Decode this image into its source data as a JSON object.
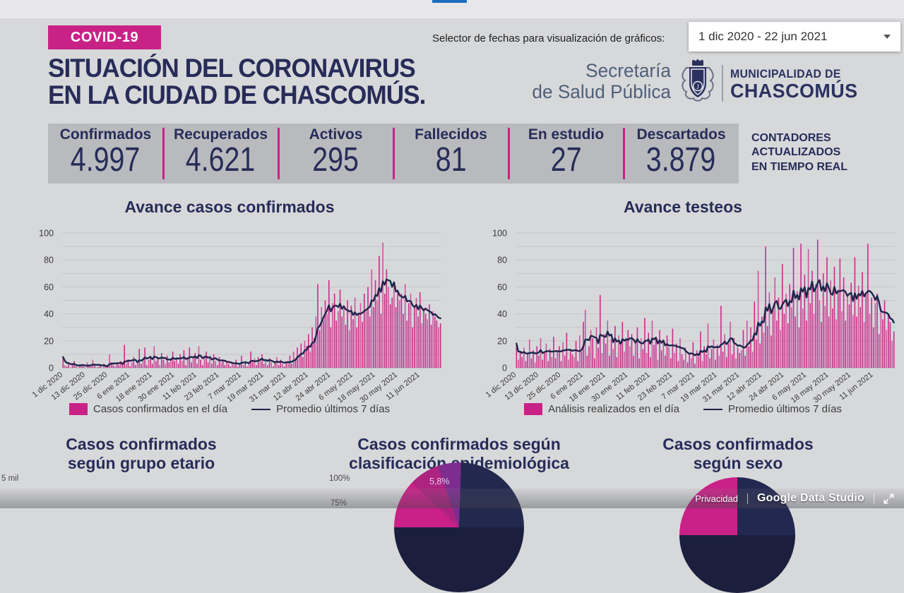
{
  "theme": {
    "magenta": "#c92287",
    "navy": "#272c58",
    "counter_bg": "#b9babd",
    "page_bg": "#d7d8da",
    "line": "#20244a"
  },
  "header": {
    "badge": "COVID-19",
    "title_line1": "SITUACIÓN DEL CORONAVIRUS",
    "title_line2": "EN LA CIUDAD DE CHASCOMÚS.",
    "date_selector_label": "Selector de fechas para visualización de gráficos:",
    "date_range": "1 dic 2020 - 22 jun 2021",
    "org_line1": "Secretaría",
    "org_line2": "de Salud Pública",
    "muni_line1": "MUNICIPALIDAD DE",
    "muni_line2": "CHASCOMÚS",
    "shield_icon": "municipal-crest"
  },
  "counters": {
    "items": [
      {
        "label": "Confirmados",
        "value": "4.997"
      },
      {
        "label": "Recuperados",
        "value": "4.621"
      },
      {
        "label": "Activos",
        "value": "295"
      },
      {
        "label": "Fallecidos",
        "value": "81"
      },
      {
        "label": "En estudio",
        "value": "27"
      },
      {
        "label": "Descartados",
        "value": "3.879"
      }
    ],
    "note_line1": "CONTADORES",
    "note_line2": "ACTUALIZADOS",
    "note_line3": "EN TIEMPO REAL"
  },
  "chart_data": [
    {
      "type": "bar",
      "title": "Avance casos confirmados",
      "ylim": [
        0,
        100
      ],
      "y_ticks": [
        0,
        20,
        40,
        60,
        80,
        100
      ],
      "grid_step": 10,
      "legend_position": "bottom",
      "categories": [
        "1 dic 2020",
        "13 dic 2020",
        "25 dic 2020",
        "6 ene 2021",
        "18 ene 2021",
        "30 ene 2021",
        "11 feb 2021",
        "23 feb 2021",
        "7 mar 2021",
        "19 mar 2021",
        "31 mar 2021",
        "12 abr 2021",
        "24 abr 2021",
        "6 may 2021",
        "18 may 2021",
        "30 may 2021",
        "11 jun 2021"
      ],
      "category_step_days": 12,
      "series": [
        {
          "name": "Casos confirmados en el día",
          "type": "bar",
          "color": "#c92287",
          "values": [
            8,
            2,
            1,
            3,
            0,
            2,
            5,
            1,
            0,
            2,
            3,
            1,
            0,
            4,
            2,
            1,
            6,
            2,
            0,
            1,
            2,
            0,
            3,
            1,
            2,
            10,
            4,
            2,
            1,
            3,
            2,
            5,
            2,
            17,
            3,
            6,
            1,
            4,
            8,
            2,
            5,
            14,
            3,
            7,
            15,
            2,
            6,
            9,
            3,
            16,
            5,
            8,
            2,
            11,
            6,
            3,
            9,
            4,
            7,
            12,
            5,
            8,
            3,
            10,
            5,
            13,
            2,
            7,
            15,
            4,
            8,
            11,
            3,
            16,
            6,
            2,
            9,
            12,
            4,
            7,
            3,
            10,
            5,
            2,
            8,
            4,
            6,
            2,
            5,
            3,
            1,
            4,
            2,
            6,
            1,
            3,
            9,
            2,
            5,
            1,
            3,
            12,
            4,
            7,
            2,
            8,
            5,
            10,
            3,
            6,
            2,
            7,
            4,
            1,
            5,
            8,
            2,
            6,
            3,
            1,
            4,
            5,
            9,
            3,
            12,
            7,
            15,
            10,
            18,
            8,
            20,
            16,
            25,
            12,
            30,
            22,
            38,
            62,
            28,
            45,
            35,
            50,
            40,
            65,
            30,
            48,
            55,
            35,
            42,
            58,
            38,
            44,
            32,
            50,
            28,
            46,
            36,
            52,
            30,
            40,
            48,
            34,
            55,
            42,
            60,
            38,
            73,
            45,
            65,
            50,
            83,
            40,
            93,
            55,
            73,
            60,
            47,
            52,
            64,
            45,
            58,
            50,
            55,
            40,
            62,
            35,
            48,
            55,
            30,
            45,
            52,
            38,
            56,
            33,
            44,
            40,
            36,
            47,
            32,
            42,
            38,
            35,
            30,
            33
          ]
        },
        {
          "name": "Promedio últimos 7 días",
          "type": "line",
          "color": "#20244a",
          "derived": "7-day trailing average of daily bars"
        }
      ]
    },
    {
      "type": "bar",
      "title": "Avance testeos",
      "ylim": [
        0,
        100
      ],
      "y_ticks": [
        0,
        20,
        40,
        60,
        80,
        100
      ],
      "grid_step": 10,
      "legend_position": "bottom",
      "categories": [
        "1 dic 2020",
        "13 dic 2020",
        "25 dic 2020",
        "6 ene 2021",
        "18 ene 2021",
        "30 ene 2021",
        "11 feb 2021",
        "23 feb 2021",
        "7 mar 2021",
        "19 mar 2021",
        "31 mar 2021",
        "12 abr 2021",
        "24 abr 2021",
        "6 may 2021",
        "18 may 2021",
        "30 may 2021",
        "11 jun 2021"
      ],
      "category_step_days": 12,
      "series": [
        {
          "name": "Análisis realizados en el día",
          "type": "bar",
          "color": "#c92287",
          "values": [
            18,
            6,
            12,
            8,
            15,
            5,
            10,
            21,
            7,
            13,
            4,
            16,
            9,
            22,
            6,
            11,
            18,
            5,
            14,
            8,
            23,
            7,
            12,
            16,
            5,
            19,
            9,
            26,
            6,
            13,
            10,
            8,
            20,
            5,
            24,
            12,
            34,
            43,
            9,
            16,
            28,
            22,
            7,
            30,
            15,
            54,
            11,
            25,
            18,
            35,
            9,
            21,
            14,
            31,
            8,
            24,
            17,
            34,
            12,
            22,
            28,
            16,
            25,
            9,
            19,
            30,
            7,
            22,
            14,
            37,
            11,
            26,
            8,
            35,
            17,
            23,
            6,
            28,
            13,
            20,
            9,
            24,
            15,
            7,
            29,
            11,
            18,
            5,
            22,
            10,
            6,
            15,
            4,
            11,
            7,
            19,
            3,
            13,
            8,
            27,
            5,
            16,
            10,
            33,
            7,
            14,
            21,
            6,
            17,
            9,
            46,
            12,
            25,
            8,
            18,
            34,
            10,
            22,
            7,
            15,
            11,
            13,
            28,
            9,
            35,
            16,
            30,
            12,
            49,
            21,
            72,
            18,
            38,
            26,
            90,
            31,
            56,
            24,
            44,
            67,
            35,
            52,
            28,
            77,
            40,
            55,
            33,
            62,
            45,
            89,
            38,
            57,
            30,
            92,
            44,
            69,
            35,
            88,
            48,
            72,
            40,
            62,
            95,
            50,
            34,
            70,
            46,
            82,
            38,
            65,
            44,
            75,
            36,
            58,
            81,
            42,
            67,
            35,
            54,
            47,
            63,
            39,
            82,
            38,
            61,
            45,
            71,
            34,
            56,
            92,
            40,
            52,
            30,
            48,
            55,
            25,
            44,
            36,
            50,
            28,
            40,
            34,
            20,
            27
          ]
        },
        {
          "name": "Promedio últimos 7 días",
          "type": "line",
          "color": "#20244a",
          "derived": "7-day trailing average of daily bars"
        }
      ]
    },
    {
      "type": "pie",
      "title": "Casos confirmados según clasificación epidemiológica",
      "note": "only top half visible in screenshot",
      "visible_axis_labels": [
        "100%",
        "75%"
      ],
      "labels_visible": [
        "5,8%"
      ],
      "slices": [
        {
          "color": "#c92187",
          "pct": 12
        },
        {
          "color": "#ad2380",
          "pct": 7.7
        },
        {
          "color": "#7c2d8e",
          "pct": 5.8,
          "label": "5,8%"
        },
        {
          "color": "#23284e",
          "pct": 24.5
        },
        {
          "color": "#1b1f3d",
          "pct": 50
        }
      ]
    },
    {
      "type": "pie",
      "title": "Casos confirmados según sexo",
      "note": "only top half visible in screenshot",
      "slices": [
        {
          "color": "#c92187",
          "pct": 25
        },
        {
          "color": "#232850",
          "pct": 25
        },
        {
          "color": "#1b1f3d",
          "pct": 50
        }
      ]
    },
    {
      "type": "bar",
      "title": "Casos confirmados según grupo etario",
      "note": "only y-axis top label visible in screenshot",
      "y_axis_top_label": "5 mil"
    }
  ],
  "bottom": {
    "section1_line1": "Casos confirmados",
    "section1_line2": "según grupo etario",
    "section2_line1": "Casos confirmados según",
    "section2_line2": "clasificación epidemiológica",
    "section3_line1": "Casos confirmados",
    "section3_line2": "según sexo",
    "label_5mil": "5 mil",
    "label_100pct": "100%",
    "label_75pct": "75%",
    "pie_label": "5,8%"
  },
  "footer": {
    "privacy": "Privacidad",
    "brand": "Google Data Studio",
    "fullscreen_icon": "open-in-full"
  }
}
